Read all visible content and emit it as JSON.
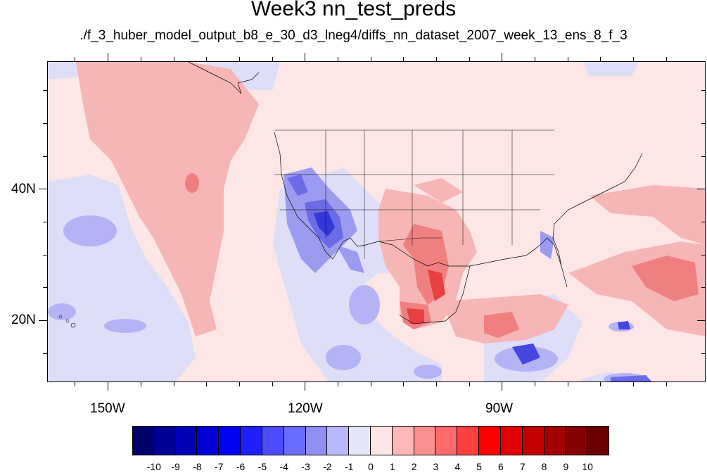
{
  "title": "Week3 nn_test_preds",
  "subtitle": "./f_3_huber_model_output_b8_e_30_d3_lneg4/diffs_nn_dataset_2007_week_13_ens_8_f_3",
  "map": {
    "lat_labels": [
      "40N",
      "20N"
    ],
    "lon_labels": [
      "150W",
      "120W",
      "90W"
    ]
  },
  "colorbar": {
    "labels": [
      "-10",
      "-9",
      "-8",
      "-7",
      "-6",
      "-5",
      "-4",
      "-3",
      "-2",
      "-1",
      "0",
      "1",
      "2",
      "3",
      "4",
      "5",
      "6",
      "7",
      "8",
      "9",
      "10"
    ],
    "colors": [
      "#00006b",
      "#000094",
      "#0000b5",
      "#0000d6",
      "#0000f2",
      "#1f1fff",
      "#4d4dff",
      "#6b6bff",
      "#8f8ff5",
      "#b8b8ff",
      "#e6e6fa",
      "#ffe6e6",
      "#ffb8b8",
      "#ff8f8f",
      "#ff6b6b",
      "#ff4040",
      "#ff0000",
      "#e00000",
      "#c20000",
      "#a30000",
      "#850000",
      "#6b0000"
    ]
  },
  "legend_colors": {
    "background": "#fde6e6",
    "light_red": "#f7b6b6",
    "mid_red": "#f08080",
    "strong_red": "#e84040",
    "light_blue": "#dedef8",
    "mid_blue": "#9b9bf0",
    "strong_blue": "#4545e0",
    "deep_blue": "#1a1ad0"
  }
}
